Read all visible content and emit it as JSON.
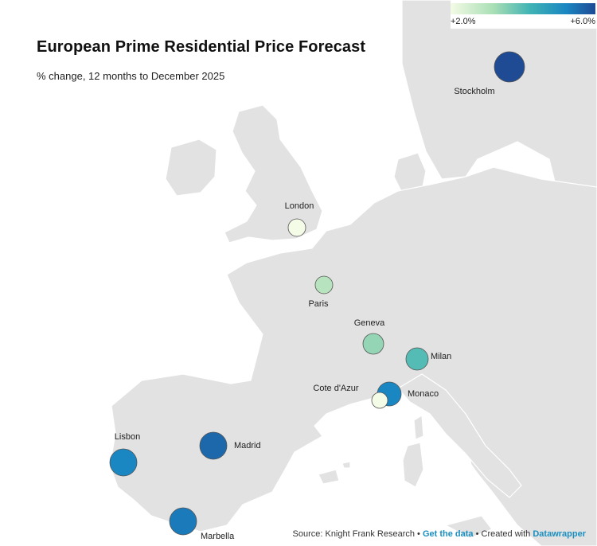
{
  "title": "European Prime Residential Price Forecast",
  "subtitle": "% change, 12 months to December 2025",
  "legend": {
    "min_label": "+2.0%",
    "max_label": "+6.0%",
    "min_value": 2.0,
    "max_value": 6.0,
    "colors": [
      "#f4fbe6",
      "#a8deb4",
      "#3fb3b4",
      "#1a86c2",
      "#1f4a94"
    ]
  },
  "cities": [
    {
      "id": "stockholm",
      "name": "Stockholm",
      "forecast": 6.0
    },
    {
      "id": "london",
      "name": "London",
      "forecast": 2.0
    },
    {
      "id": "paris",
      "name": "Paris",
      "forecast": 2.8
    },
    {
      "id": "geneva",
      "name": "Geneva",
      "forecast": 3.2
    },
    {
      "id": "milan",
      "name": "Milan",
      "forecast": 3.8
    },
    {
      "id": "monaco",
      "name": "Monaco",
      "forecast": 5.0
    },
    {
      "id": "cote_dazur",
      "name": "Cote d'Azur",
      "forecast": 2.0
    },
    {
      "id": "madrid",
      "name": "Madrid",
      "forecast": 5.5
    },
    {
      "id": "lisbon",
      "name": "Lisbon",
      "forecast": 5.0
    },
    {
      "id": "marbella",
      "name": "Marbella",
      "forecast": 5.2
    }
  ],
  "footer": {
    "source": "Source: Knight Frank Research",
    "sep": "•",
    "get_data": "Get the data",
    "created": "Created with",
    "tool": "Datawrapper"
  }
}
